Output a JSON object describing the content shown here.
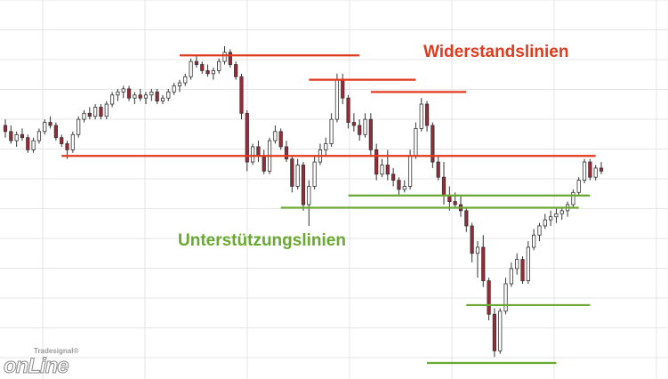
{
  "labels": {
    "resistance": "Widerstandslinien",
    "support": "Unterstützungslinien"
  },
  "logo": {
    "brand": "Tradesignal®",
    "name": "onLine"
  },
  "colors": {
    "resistance": "#e03a1e",
    "support": "#6aa832",
    "candle_up_fill": "#ffffff",
    "candle_down_fill": "#9c2a36",
    "grid": "#e4e4e4",
    "wick": "#333333"
  },
  "chart_data": {
    "type": "candlestick",
    "grid": true,
    "price_range": [
      0,
      100
    ],
    "candles": [
      {
        "o": 78,
        "h": 80,
        "l": 74,
        "c": 76
      },
      {
        "o": 76,
        "h": 78,
        "l": 72,
        "c": 73
      },
      {
        "o": 73,
        "h": 76,
        "l": 71,
        "c": 75
      },
      {
        "o": 75,
        "h": 77,
        "l": 73,
        "c": 74
      },
      {
        "o": 74,
        "h": 75,
        "l": 69,
        "c": 70
      },
      {
        "o": 70,
        "h": 74,
        "l": 69,
        "c": 73
      },
      {
        "o": 73,
        "h": 77,
        "l": 72,
        "c": 76
      },
      {
        "o": 76,
        "h": 80,
        "l": 75,
        "c": 79
      },
      {
        "o": 79,
        "h": 81,
        "l": 77,
        "c": 78
      },
      {
        "o": 78,
        "h": 79,
        "l": 73,
        "c": 74
      },
      {
        "o": 74,
        "h": 75,
        "l": 71,
        "c": 72
      },
      {
        "o": 72,
        "h": 73,
        "l": 67,
        "c": 70
      },
      {
        "o": 70,
        "h": 76,
        "l": 69,
        "c": 75
      },
      {
        "o": 75,
        "h": 81,
        "l": 74,
        "c": 80
      },
      {
        "o": 80,
        "h": 83,
        "l": 79,
        "c": 82
      },
      {
        "o": 82,
        "h": 84,
        "l": 80,
        "c": 81
      },
      {
        "o": 81,
        "h": 85,
        "l": 80,
        "c": 84
      },
      {
        "o": 84,
        "h": 85,
        "l": 80,
        "c": 81
      },
      {
        "o": 81,
        "h": 86,
        "l": 80,
        "c": 85
      },
      {
        "o": 85,
        "h": 89,
        "l": 84,
        "c": 88
      },
      {
        "o": 88,
        "h": 90,
        "l": 86,
        "c": 89
      },
      {
        "o": 89,
        "h": 91,
        "l": 87,
        "c": 90
      },
      {
        "o": 90,
        "h": 91,
        "l": 86,
        "c": 87
      },
      {
        "o": 87,
        "h": 89,
        "l": 85,
        "c": 88
      },
      {
        "o": 88,
        "h": 90,
        "l": 86,
        "c": 87
      },
      {
        "o": 87,
        "h": 89,
        "l": 85,
        "c": 88
      },
      {
        "o": 88,
        "h": 90,
        "l": 86,
        "c": 89
      },
      {
        "o": 89,
        "h": 90,
        "l": 85,
        "c": 86
      },
      {
        "o": 86,
        "h": 88,
        "l": 85,
        "c": 87
      },
      {
        "o": 87,
        "h": 90,
        "l": 86,
        "c": 89
      },
      {
        "o": 89,
        "h": 92,
        "l": 88,
        "c": 91
      },
      {
        "o": 91,
        "h": 93,
        "l": 89,
        "c": 92
      },
      {
        "o": 92,
        "h": 95,
        "l": 91,
        "c": 94
      },
      {
        "o": 94,
        "h": 100,
        "l": 93,
        "c": 99
      },
      {
        "o": 99,
        "h": 101,
        "l": 97,
        "c": 98
      },
      {
        "o": 98,
        "h": 99,
        "l": 95,
        "c": 96
      },
      {
        "o": 96,
        "h": 98,
        "l": 94,
        "c": 95
      },
      {
        "o": 95,
        "h": 97,
        "l": 93,
        "c": 96
      },
      {
        "o": 96,
        "h": 100,
        "l": 95,
        "c": 99
      },
      {
        "o": 99,
        "h": 104,
        "l": 98,
        "c": 102
      },
      {
        "o": 102,
        "h": 103,
        "l": 97,
        "c": 98
      },
      {
        "o": 98,
        "h": 99,
        "l": 93,
        "c": 94
      },
      {
        "o": 94,
        "h": 95,
        "l": 80,
        "c": 82
      },
      {
        "o": 82,
        "h": 83,
        "l": 63,
        "c": 66
      },
      {
        "o": 66,
        "h": 72,
        "l": 65,
        "c": 71
      },
      {
        "o": 71,
        "h": 73,
        "l": 66,
        "c": 68
      },
      {
        "o": 68,
        "h": 70,
        "l": 62,
        "c": 63
      },
      {
        "o": 63,
        "h": 74,
        "l": 62,
        "c": 73
      },
      {
        "o": 73,
        "h": 78,
        "l": 72,
        "c": 76
      },
      {
        "o": 76,
        "h": 77,
        "l": 70,
        "c": 71
      },
      {
        "o": 71,
        "h": 73,
        "l": 66,
        "c": 67
      },
      {
        "o": 67,
        "h": 68,
        "l": 56,
        "c": 58
      },
      {
        "o": 58,
        "h": 67,
        "l": 57,
        "c": 65
      },
      {
        "o": 65,
        "h": 66,
        "l": 50,
        "c": 52
      },
      {
        "o": 52,
        "h": 60,
        "l": 45,
        "c": 58
      },
      {
        "o": 58,
        "h": 68,
        "l": 57,
        "c": 66
      },
      {
        "o": 66,
        "h": 72,
        "l": 65,
        "c": 70
      },
      {
        "o": 70,
        "h": 74,
        "l": 68,
        "c": 72
      },
      {
        "o": 72,
        "h": 82,
        "l": 71,
        "c": 80
      },
      {
        "o": 80,
        "h": 95,
        "l": 79,
        "c": 93
      },
      {
        "o": 93,
        "h": 95,
        "l": 85,
        "c": 87
      },
      {
        "o": 87,
        "h": 88,
        "l": 77,
        "c": 79
      },
      {
        "o": 79,
        "h": 82,
        "l": 76,
        "c": 78
      },
      {
        "o": 78,
        "h": 80,
        "l": 73,
        "c": 75
      },
      {
        "o": 75,
        "h": 82,
        "l": 74,
        "c": 80
      },
      {
        "o": 80,
        "h": 82,
        "l": 68,
        "c": 70
      },
      {
        "o": 70,
        "h": 72,
        "l": 60,
        "c": 62
      },
      {
        "o": 62,
        "h": 67,
        "l": 61,
        "c": 65
      },
      {
        "o": 65,
        "h": 70,
        "l": 60,
        "c": 62
      },
      {
        "o": 62,
        "h": 64,
        "l": 58,
        "c": 60
      },
      {
        "o": 60,
        "h": 61,
        "l": 55,
        "c": 57
      },
      {
        "o": 57,
        "h": 60,
        "l": 56,
        "c": 58
      },
      {
        "o": 58,
        "h": 70,
        "l": 57,
        "c": 68
      },
      {
        "o": 68,
        "h": 79,
        "l": 67,
        "c": 77
      },
      {
        "o": 77,
        "h": 87,
        "l": 76,
        "c": 85
      },
      {
        "o": 85,
        "h": 86,
        "l": 76,
        "c": 78
      },
      {
        "o": 78,
        "h": 79,
        "l": 64,
        "c": 66
      },
      {
        "o": 66,
        "h": 68,
        "l": 60,
        "c": 61
      },
      {
        "o": 61,
        "h": 66,
        "l": 52,
        "c": 55
      },
      {
        "o": 55,
        "h": 58,
        "l": 50,
        "c": 53
      },
      {
        "o": 53,
        "h": 56,
        "l": 51,
        "c": 52
      },
      {
        "o": 52,
        "h": 55,
        "l": 48,
        "c": 50
      },
      {
        "o": 50,
        "h": 51,
        "l": 43,
        "c": 45
      },
      {
        "o": 45,
        "h": 46,
        "l": 33,
        "c": 36
      },
      {
        "o": 36,
        "h": 40,
        "l": 28,
        "c": 38
      },
      {
        "o": 38,
        "h": 42,
        "l": 25,
        "c": 27
      },
      {
        "o": 27,
        "h": 28,
        "l": 14,
        "c": 16
      },
      {
        "o": 16,
        "h": 18,
        "l": 2,
        "c": 4
      },
      {
        "o": 4,
        "h": 18,
        "l": 3,
        "c": 17
      },
      {
        "o": 17,
        "h": 28,
        "l": 16,
        "c": 26
      },
      {
        "o": 26,
        "h": 33,
        "l": 25,
        "c": 31
      },
      {
        "o": 31,
        "h": 36,
        "l": 29,
        "c": 34
      },
      {
        "o": 34,
        "h": 35,
        "l": 26,
        "c": 27
      },
      {
        "o": 27,
        "h": 40,
        "l": 26,
        "c": 38
      },
      {
        "o": 38,
        "h": 44,
        "l": 37,
        "c": 42
      },
      {
        "o": 42,
        "h": 46,
        "l": 40,
        "c": 45
      },
      {
        "o": 45,
        "h": 49,
        "l": 44,
        "c": 47
      },
      {
        "o": 47,
        "h": 50,
        "l": 45,
        "c": 48
      },
      {
        "o": 48,
        "h": 51,
        "l": 46,
        "c": 49
      },
      {
        "o": 49,
        "h": 51,
        "l": 47,
        "c": 50
      },
      {
        "o": 50,
        "h": 53,
        "l": 48,
        "c": 52
      },
      {
        "o": 52,
        "h": 57,
        "l": 51,
        "c": 56
      },
      {
        "o": 56,
        "h": 61,
        "l": 55,
        "c": 60
      },
      {
        "o": 60,
        "h": 67,
        "l": 59,
        "c": 66
      },
      {
        "o": 66,
        "h": 67,
        "l": 60,
        "c": 61
      },
      {
        "o": 61,
        "h": 65,
        "l": 60,
        "c": 64
      },
      {
        "o": 64,
        "h": 66,
        "l": 62,
        "c": 63
      }
    ],
    "resistance_lines": [
      {
        "from": 31,
        "to": 63,
        "price": 101
      },
      {
        "from": 54,
        "to": 73,
        "price": 93
      },
      {
        "from": 65,
        "to": 82,
        "price": 89
      },
      {
        "from": 10,
        "to": 105,
        "price": 68
      }
    ],
    "support_lines": [
      {
        "from": 49,
        "to": 102,
        "price": 51
      },
      {
        "from": 61,
        "to": 104,
        "price": 55
      },
      {
        "from": 82,
        "to": 104,
        "price": 19
      },
      {
        "from": 75,
        "to": 98,
        "price": 0
      }
    ]
  }
}
